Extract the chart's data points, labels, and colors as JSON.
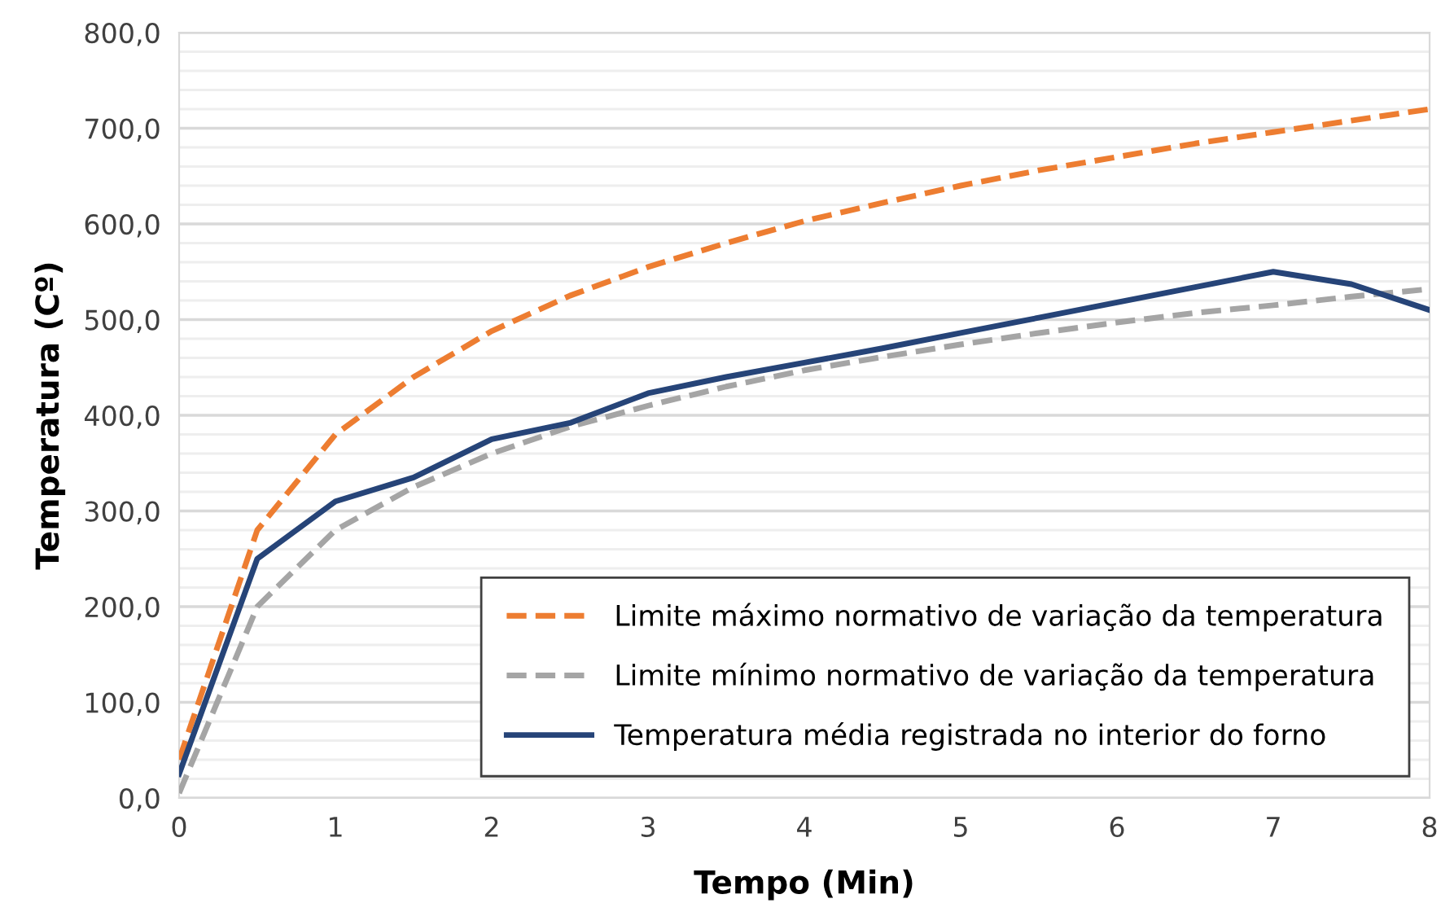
{
  "chart_data": {
    "type": "line",
    "xlabel": "Tempo (Min)",
    "ylabel": "Temperatura (Cº)",
    "x": [
      0,
      0.5,
      1,
      1.5,
      2,
      2.5,
      3,
      3.5,
      4,
      4.5,
      5,
      5.5,
      6,
      6.5,
      7,
      7.5,
      8
    ],
    "series": [
      {
        "name": "Limite máximo normativo de variação da temperatura",
        "color": "#ed7d31",
        "line_style": "dashed",
        "values": [
          40,
          280,
          380,
          440,
          488,
          525,
          555,
          580,
          603,
          622,
          640,
          656,
          670,
          684,
          696,
          708,
          720
        ]
      },
      {
        "name": "Limite mínimo normativo de variação da temperatura",
        "color": "#a5a5a5",
        "line_style": "dashed",
        "values": [
          5,
          200,
          280,
          325,
          360,
          388,
          410,
          430,
          447,
          461,
          474,
          486,
          497,
          507,
          515,
          524,
          532
        ]
      },
      {
        "name": "Temperatura média registrada no interior do forno",
        "color": "#264478",
        "line_style": "solid",
        "values": [
          25,
          250,
          310,
          335,
          375,
          392,
          423,
          440,
          455,
          470,
          486,
          502,
          518,
          534,
          550,
          537,
          510
        ]
      }
    ],
    "xlim": [
      0,
      8
    ],
    "xticks": [
      0,
      1,
      2,
      3,
      4,
      5,
      6,
      7,
      8
    ],
    "ylim": [
      0,
      800
    ],
    "yticks": [
      {
        "value": 0,
        "label": "0,0"
      },
      {
        "value": 20,
        "label": null
      },
      {
        "value": 40,
        "label": null
      },
      {
        "value": 60,
        "label": null
      },
      {
        "value": 80,
        "label": null
      },
      {
        "value": 100,
        "label": "100,0"
      },
      {
        "value": 120,
        "label": null
      },
      {
        "value": 140,
        "label": null
      },
      {
        "value": 160,
        "label": null
      },
      {
        "value": 180,
        "label": null
      },
      {
        "value": 200,
        "label": "200,0"
      },
      {
        "value": 220,
        "label": null
      },
      {
        "value": 240,
        "label": null
      },
      {
        "value": 260,
        "label": null
      },
      {
        "value": 280,
        "label": null
      },
      {
        "value": 300,
        "label": "300,0"
      },
      {
        "value": 320,
        "label": null
      },
      {
        "value": 340,
        "label": null
      },
      {
        "value": 360,
        "label": null
      },
      {
        "value": 380,
        "label": null
      },
      {
        "value": 400,
        "label": "400,0"
      },
      {
        "value": 420,
        "label": null
      },
      {
        "value": 440,
        "label": null
      },
      {
        "value": 460,
        "label": null
      },
      {
        "value": 480,
        "label": null
      },
      {
        "value": 500,
        "label": "500,0"
      },
      {
        "value": 520,
        "label": null
      },
      {
        "value": 540,
        "label": null
      },
      {
        "value": 560,
        "label": null
      },
      {
        "value": 580,
        "label": null
      },
      {
        "value": 600,
        "label": "600,0"
      },
      {
        "value": 620,
        "label": null
      },
      {
        "value": 640,
        "label": null
      },
      {
        "value": 660,
        "label": null
      },
      {
        "value": 680,
        "label": null
      },
      {
        "value": 700,
        "label": "700,0"
      },
      {
        "value": 720,
        "label": null
      },
      {
        "value": 740,
        "label": null
      },
      {
        "value": 760,
        "label": null
      },
      {
        "value": 780,
        "label": null
      },
      {
        "value": 800,
        "label": "800,0"
      }
    ],
    "grid": "y",
    "legend": "bottom right",
    "marker": "none"
  }
}
